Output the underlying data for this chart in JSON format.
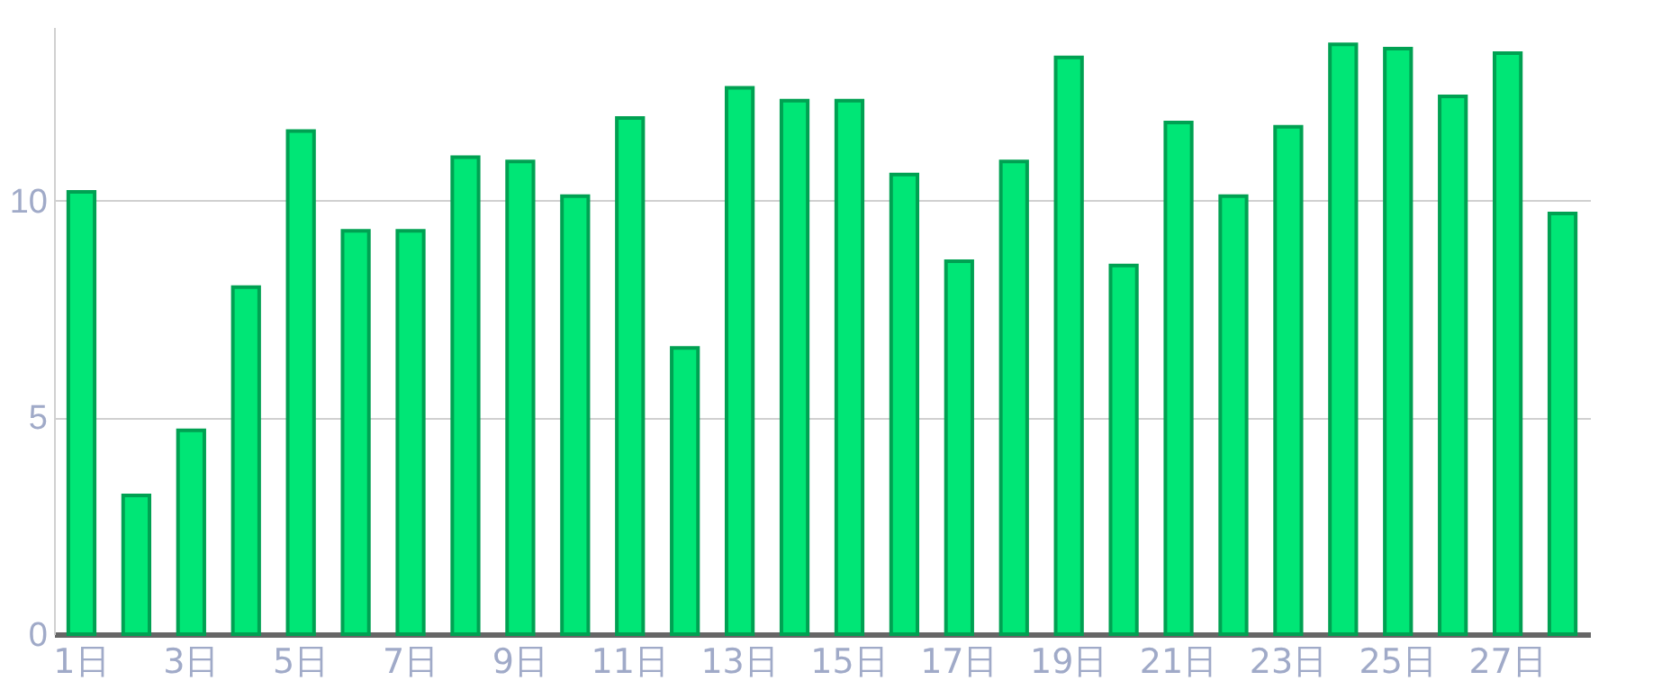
{
  "chart_data": {
    "type": "bar",
    "categories": [
      "1日",
      null,
      "3日",
      null,
      "5日",
      null,
      "7日",
      null,
      "9日",
      null,
      "11日",
      null,
      "13日",
      null,
      "15日",
      null,
      "17日",
      null,
      "19日",
      null,
      "21日",
      null,
      "23日",
      null,
      "25日",
      null,
      "27日",
      null
    ],
    "values": [
      10.2,
      3.2,
      4.7,
      8.0,
      11.6,
      9.3,
      9.3,
      11.0,
      10.9,
      10.1,
      11.9,
      6.6,
      12.6,
      12.3,
      12.3,
      10.6,
      8.6,
      10.9,
      13.3,
      8.5,
      11.8,
      10.1,
      11.7,
      13.6,
      13.5,
      12.4,
      13.4,
      9.7
    ],
    "color": "#00e676",
    "ylim": [
      0,
      14
    ],
    "yticks": [
      0,
      5,
      10
    ],
    "grid": "y"
  }
}
